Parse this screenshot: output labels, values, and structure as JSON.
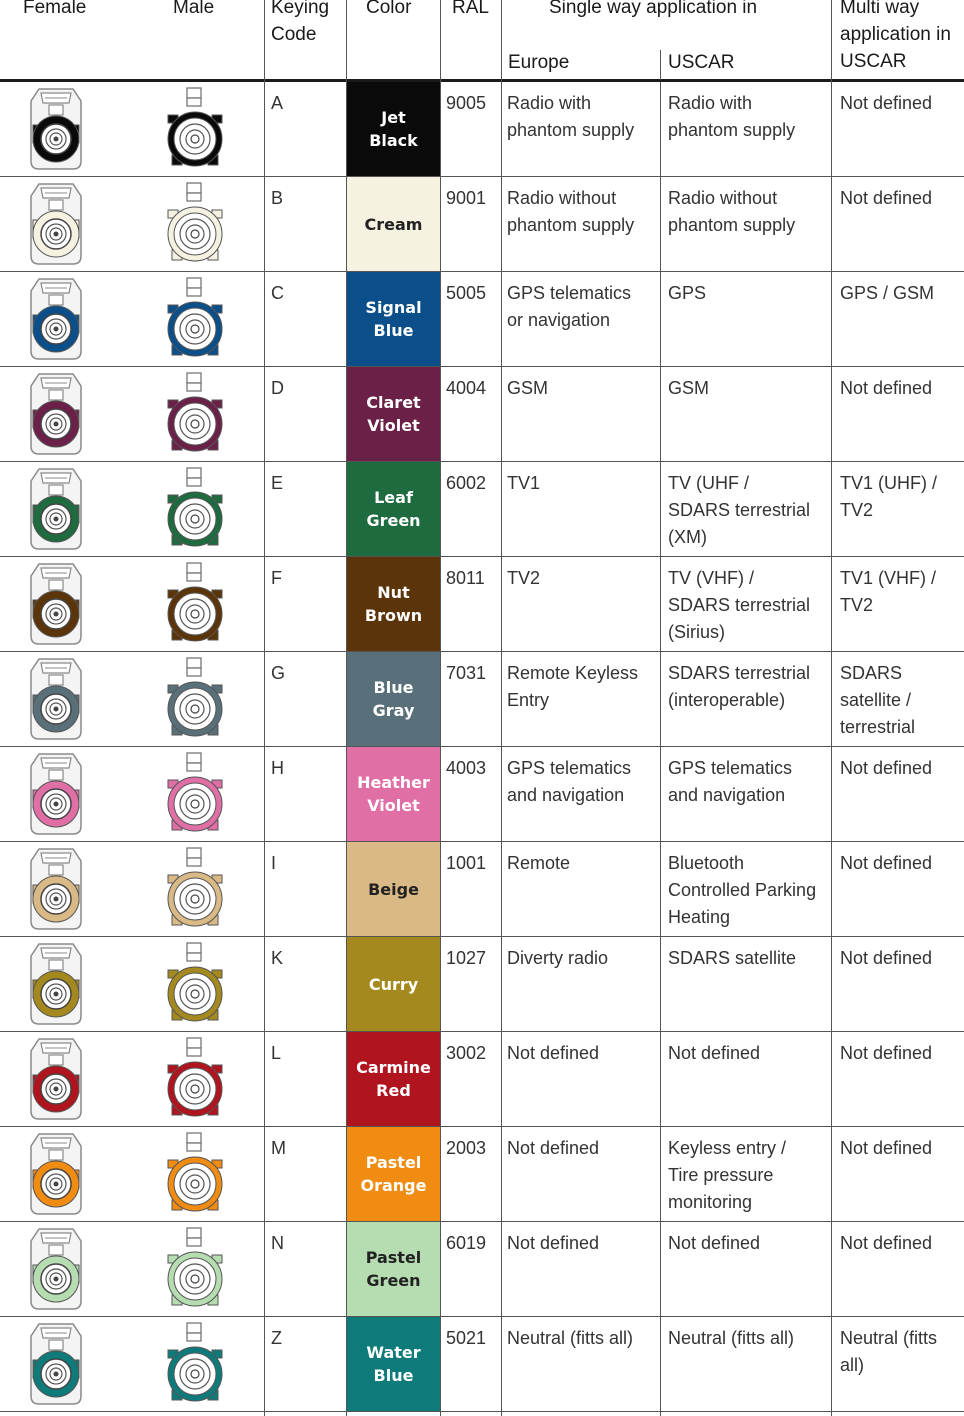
{
  "header": {
    "female": "Female",
    "male": "Male",
    "keying_code": [
      "Keying",
      "Code"
    ],
    "color": "Color",
    "ral": "RAL",
    "single_way": "Single way application in",
    "europe": "Europe",
    "uscar": "USCAR",
    "multi_way": [
      "Multi way",
      "application in",
      "USCAR"
    ]
  },
  "rows": [
    {
      "code": "A",
      "color_name": [
        "Jet",
        "Black"
      ],
      "hex": "#0a0a0a",
      "text_color": "#ffffff",
      "ral": "9005",
      "europe": [
        "Radio with",
        "phantom supply"
      ],
      "uscar": [
        "Radio with",
        "phantom supply"
      ],
      "multi": [
        "Not defined"
      ]
    },
    {
      "code": "B",
      "color_name": [
        "Cream"
      ],
      "hex": "#f6f2e2",
      "text_color": "#222222",
      "ral": "9001",
      "europe": [
        "Radio without",
        "phantom supply"
      ],
      "uscar": [
        "Radio without",
        "phantom supply"
      ],
      "multi": [
        "Not defined"
      ]
    },
    {
      "code": "C",
      "color_name": [
        "Signal",
        "Blue"
      ],
      "hex": "#0b4f8a",
      "text_color": "#ffffff",
      "ral": "5005",
      "europe": [
        "GPS telematics",
        "or navigation"
      ],
      "uscar": [
        "GPS"
      ],
      "multi": [
        "GPS / GSM"
      ]
    },
    {
      "code": "D",
      "color_name": [
        "Claret",
        "Violet"
      ],
      "hex": "#6b2147",
      "text_color": "#ffffff",
      "ral": "4004",
      "europe": [
        "GSM"
      ],
      "uscar": [
        "GSM"
      ],
      "multi": [
        "Not defined"
      ]
    },
    {
      "code": "E",
      "color_name": [
        "Leaf",
        "Green"
      ],
      "hex": "#1e6b3f",
      "text_color": "#ffffff",
      "ral": "6002",
      "europe": [
        "TV1"
      ],
      "uscar": [
        "TV (UHF /",
        "SDARS terrestrial",
        "(XM)"
      ],
      "multi": [
        "TV1 (UHF) /",
        "TV2"
      ]
    },
    {
      "code": "F",
      "color_name": [
        "Nut",
        "Brown"
      ],
      "hex": "#5c3409",
      "text_color": "#ffffff",
      "ral": "8011",
      "europe": [
        "TV2"
      ],
      "uscar": [
        "TV (VHF) /",
        "SDARS terrestrial",
        "(Sirius)"
      ],
      "multi": [
        "TV1 (VHF) /",
        "TV2"
      ]
    },
    {
      "code": "G",
      "color_name": [
        "Blue",
        "Gray"
      ],
      "hex": "#59707a",
      "text_color": "#ffffff",
      "ral": "7031",
      "europe": [
        "Remote Keyless",
        "Entry"
      ],
      "uscar": [
        "SDARS terrestrial",
        "(interoperable)"
      ],
      "multi": [
        "SDARS",
        "satellite /",
        "terrestrial"
      ]
    },
    {
      "code": "H",
      "color_name": [
        "Heather",
        "Violet"
      ],
      "hex": "#e06fa6",
      "text_color": "#ffffff",
      "ral": "4003",
      "europe": [
        "GPS telematics",
        "and navigation"
      ],
      "uscar": [
        "GPS telematics",
        "and navigation"
      ],
      "multi": [
        "Not defined"
      ]
    },
    {
      "code": "I",
      "color_name": [
        "Beige"
      ],
      "hex": "#d9b986",
      "text_color": "#222222",
      "ral": "1001",
      "europe": [
        "Remote"
      ],
      "uscar": [
        "Bluetooth",
        "Controlled Parking",
        "Heating"
      ],
      "multi": [
        "Not defined"
      ]
    },
    {
      "code": "K",
      "color_name": [
        "Curry"
      ],
      "hex": "#a4891f",
      "text_color": "#ffffff",
      "ral": "1027",
      "europe": [
        "Diverty radio"
      ],
      "uscar": [
        "SDARS satellite"
      ],
      "multi": [
        "Not defined"
      ]
    },
    {
      "code": "L",
      "color_name": [
        "Carmine",
        "Red"
      ],
      "hex": "#b0141e",
      "text_color": "#ffffff",
      "ral": "3002",
      "europe": [
        "Not defined"
      ],
      "uscar": [
        "Not defined"
      ],
      "multi": [
        "Not defined"
      ]
    },
    {
      "code": "M",
      "color_name": [
        "Pastel",
        "Orange"
      ],
      "hex": "#f08c12",
      "text_color": "#ffffff",
      "ral": "2003",
      "europe": [
        "Not defined"
      ],
      "uscar": [
        "Keyless entry /",
        "Tire pressure",
        "monitoring"
      ],
      "multi": [
        "Not defined"
      ]
    },
    {
      "code": "N",
      "color_name": [
        "Pastel",
        "Green"
      ],
      "hex": "#b6dcb1",
      "text_color": "#222222",
      "ral": "6019",
      "europe": [
        "Not defined"
      ],
      "uscar": [
        "Not defined"
      ],
      "multi": [
        "Not defined"
      ]
    },
    {
      "code": "Z",
      "color_name": [
        "Water",
        "Blue"
      ],
      "hex": "#0f7a7a",
      "text_color": "#ffffff",
      "ral": "5021",
      "europe": [
        "Neutral (fitts all)"
      ],
      "uscar": [
        "Neutral (fitts all)"
      ],
      "multi": [
        "Neutral (fitts all)"
      ]
    }
  ]
}
